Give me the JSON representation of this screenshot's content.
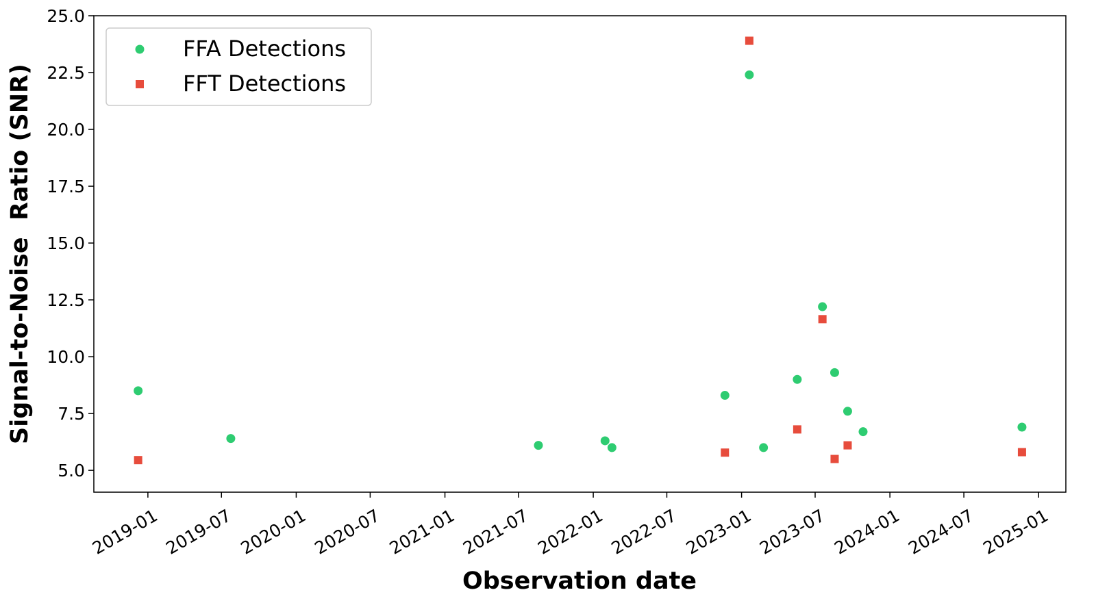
{
  "chart_data": {
    "type": "scatter",
    "title": "",
    "xlabel": "Observation date",
    "ylabel": "Signal-to-Noise  Ratio (SNR)",
    "xlim": [
      "2018-08-21",
      "2025-03-09"
    ],
    "ylim": [
      4.04,
      25.0
    ],
    "x_ticks": [
      "2019-01",
      "2019-07",
      "2020-01",
      "2020-07",
      "2021-01",
      "2021-07",
      "2022-01",
      "2022-07",
      "2023-01",
      "2023-07",
      "2024-01",
      "2024-07",
      "2025-01"
    ],
    "y_ticks": [
      "5.0",
      "7.5",
      "10.0",
      "12.5",
      "15.0",
      "17.5",
      "20.0",
      "22.5",
      "25.0"
    ],
    "grid": false,
    "legend_position": "top-left",
    "series": [
      {
        "name": "FFA Detections",
        "marker": "circle",
        "color": "#2ecc71",
        "points": [
          {
            "x": "2018-12-08",
            "y": 8.5
          },
          {
            "x": "2019-07-24",
            "y": 6.4
          },
          {
            "x": "2021-08-19",
            "y": 6.1
          },
          {
            "x": "2022-01-30",
            "y": 6.3
          },
          {
            "x": "2022-02-16",
            "y": 6.0
          },
          {
            "x": "2022-11-21",
            "y": 8.3
          },
          {
            "x": "2023-01-20",
            "y": 22.4
          },
          {
            "x": "2023-02-24",
            "y": 6.0
          },
          {
            "x": "2023-05-18",
            "y": 9.0
          },
          {
            "x": "2023-07-19",
            "y": 12.2
          },
          {
            "x": "2023-08-18",
            "y": 9.3
          },
          {
            "x": "2023-09-19",
            "y": 7.6
          },
          {
            "x": "2023-10-27",
            "y": 6.7
          },
          {
            "x": "2024-11-21",
            "y": 6.9
          }
        ]
      },
      {
        "name": "FFT Detections",
        "marker": "square",
        "color": "#e74c3c",
        "points": [
          {
            "x": "2018-12-08",
            "y": 5.45
          },
          {
            "x": "2022-11-21",
            "y": 5.78
          },
          {
            "x": "2023-01-20",
            "y": 23.9
          },
          {
            "x": "2023-05-18",
            "y": 6.8
          },
          {
            "x": "2023-07-19",
            "y": 11.65
          },
          {
            "x": "2023-08-18",
            "y": 5.5
          },
          {
            "x": "2023-09-19",
            "y": 6.1
          },
          {
            "x": "2024-11-21",
            "y": 5.8
          }
        ]
      }
    ]
  }
}
